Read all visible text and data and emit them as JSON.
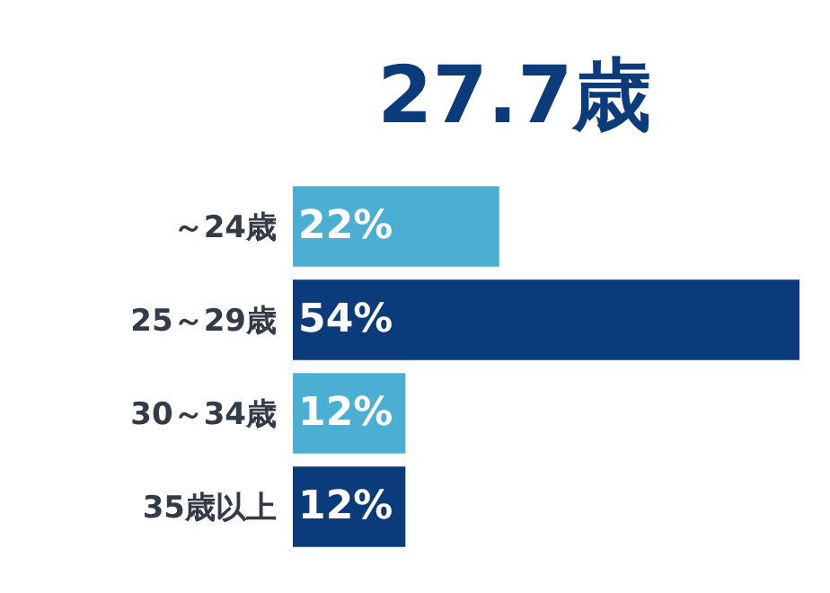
{
  "chart_data": {
    "type": "bar",
    "orientation": "horizontal",
    "title": "27.7歳",
    "categories": [
      "～24歳",
      "25～29歳",
      "30～34歳",
      "35歳以上"
    ],
    "values": [
      22,
      54,
      12,
      12
    ],
    "colors": [
      "#4bafd3",
      "#0c3b7b",
      "#4bafd3",
      "#0c3b7b"
    ],
    "value_labels": [
      "22%",
      "54%",
      "12%",
      "12%"
    ],
    "tick_labels": "y"
  }
}
